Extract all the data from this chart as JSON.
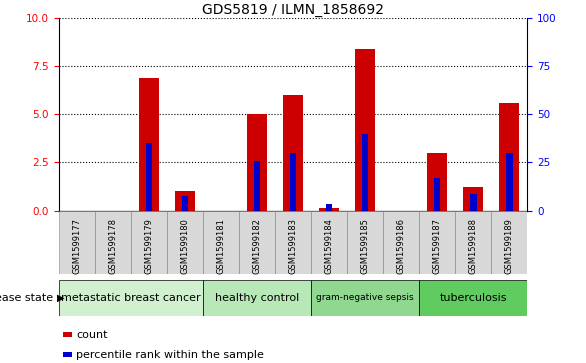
{
  "title": "GDS5819 / ILMN_1858692",
  "samples": [
    "GSM1599177",
    "GSM1599178",
    "GSM1599179",
    "GSM1599180",
    "GSM1599181",
    "GSM1599182",
    "GSM1599183",
    "GSM1599184",
    "GSM1599185",
    "GSM1599186",
    "GSM1599187",
    "GSM1599188",
    "GSM1599189"
  ],
  "count_values": [
    0,
    0,
    6.9,
    1.0,
    0,
    5.0,
    6.0,
    0.15,
    8.4,
    0,
    3.0,
    1.2,
    5.6
  ],
  "percentile_values": [
    0,
    0,
    3.5,
    0.75,
    0,
    2.6,
    3.0,
    0.35,
    4.0,
    0,
    1.7,
    0.85,
    3.0
  ],
  "disease_groups": [
    {
      "label": "metastatic breast cancer",
      "start": 0,
      "end": 4,
      "color": "#d0f0d0"
    },
    {
      "label": "healthy control",
      "start": 4,
      "end": 7,
      "color": "#b8e8b8"
    },
    {
      "label": "gram-negative sepsis",
      "start": 7,
      "end": 10,
      "color": "#90d890"
    },
    {
      "label": "tuberculosis",
      "start": 10,
      "end": 13,
      "color": "#60cc60"
    }
  ],
  "bar_color": "#cc0000",
  "percentile_color": "#0000cc",
  "ylim_left": [
    0,
    10
  ],
  "ylim_right": [
    0,
    100
  ],
  "yticks_left": [
    0,
    2.5,
    5,
    7.5,
    10
  ],
  "yticks_right": [
    0,
    25,
    50,
    75,
    100
  ],
  "bg_color": "#d8d8d8",
  "legend_count_label": "count",
  "legend_percentile_label": "percentile rank within the sample",
  "disease_state_label": "disease state"
}
